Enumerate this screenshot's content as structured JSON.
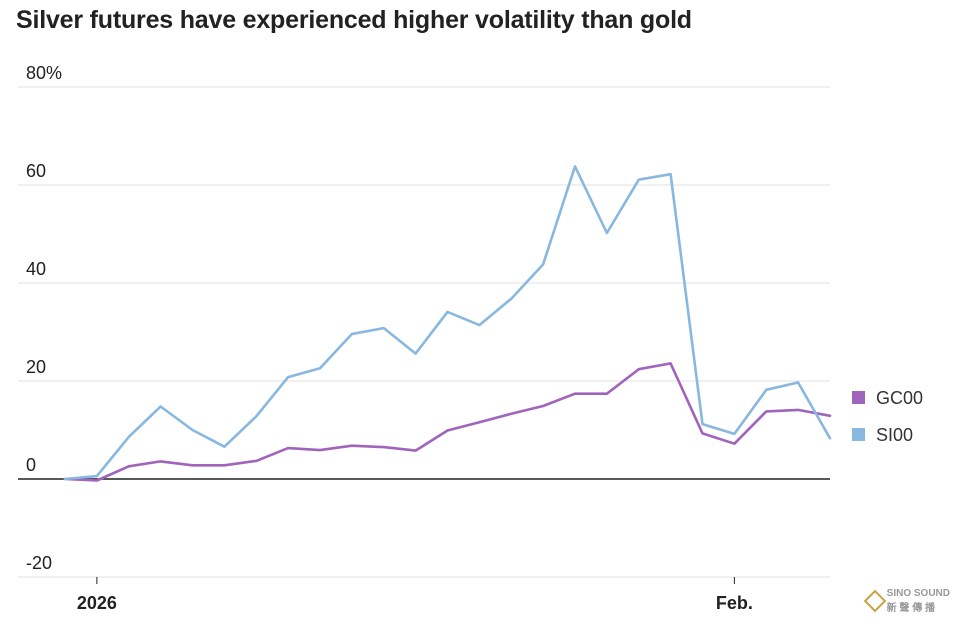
{
  "chart_data": {
    "type": "line",
    "title": "Silver futures have experienced higher volatility than gold",
    "xlabel": "",
    "ylabel": "",
    "ylim": [
      -20,
      80
    ],
    "y_ticks": [
      "80%",
      "60",
      "40",
      "20",
      "0",
      "-20"
    ],
    "y_tick_values": [
      80,
      60,
      40,
      20,
      0,
      -20
    ],
    "x_tick_labels": [
      "2026",
      "Feb."
    ],
    "x_tick_index": [
      1,
      21
    ],
    "x_count": 25,
    "series": [
      {
        "name": "GC00",
        "color": "#a064bc",
        "values": [
          0,
          -0.3,
          2.6,
          3.6,
          2.8,
          2.8,
          3.7,
          6.3,
          5.9,
          6.8,
          6.5,
          5.8,
          9.9,
          11.6,
          13.3,
          14.9,
          17.4,
          17.4,
          22.4,
          23.6,
          9.3,
          7.2,
          13.8,
          14.1,
          12.9
        ]
      },
      {
        "name": "SI00",
        "color": "#88b8df",
        "values": [
          0,
          0.6,
          8.6,
          14.8,
          10.0,
          6.6,
          12.8,
          20.8,
          22.6,
          29.6,
          30.8,
          25.6,
          34.1,
          31.4,
          36.8,
          43.8,
          63.8,
          50.2,
          61.1,
          62.2,
          11.2,
          9.2,
          18.2,
          19.7,
          8.3
        ]
      }
    ],
    "legend": [
      "GC00",
      "SI00"
    ]
  },
  "watermark": {
    "brand": "SINO SOUND",
    "sub": "新 聲 傳 播"
  }
}
